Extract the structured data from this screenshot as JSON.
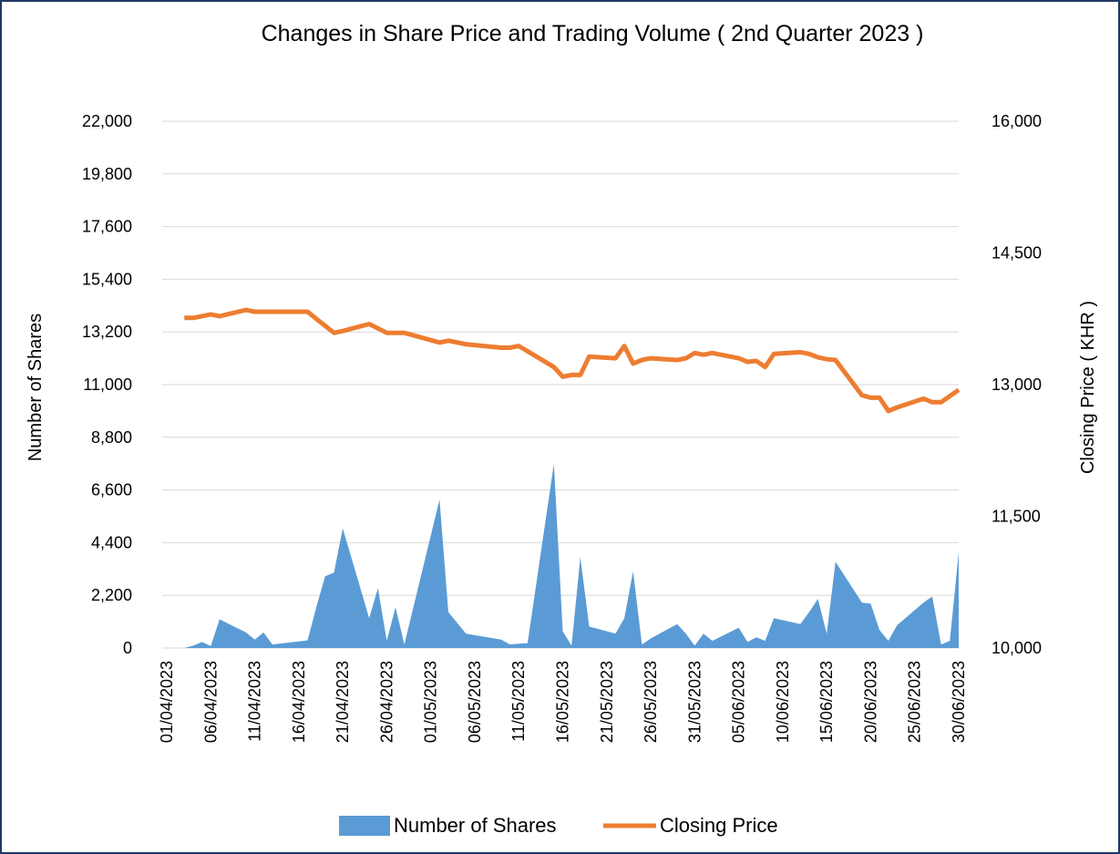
{
  "chart_data": {
    "type": "area-line",
    "title": "Changes in Share Price and Trading Volume ( 2nd Quarter 2023 )",
    "ylabel": "Number of Shares",
    "y2label": "Closing Price ( KHR )",
    "x": [
      "03/04/2023",
      "04/04/2023",
      "05/04/2023",
      "06/04/2023",
      "07/04/2023",
      "10/04/2023",
      "11/04/2023",
      "12/04/2023",
      "13/04/2023",
      "17/04/2023",
      "18/04/2023",
      "19/04/2023",
      "20/04/2023",
      "21/04/2023",
      "24/04/2023",
      "25/04/2023",
      "26/04/2023",
      "27/04/2023",
      "28/04/2023",
      "02/05/2023",
      "03/05/2023",
      "05/05/2023",
      "09/05/2023",
      "10/05/2023",
      "11/05/2023",
      "12/05/2023",
      "15/05/2023",
      "16/05/2023",
      "17/05/2023",
      "18/05/2023",
      "19/05/2023",
      "22/05/2023",
      "23/05/2023",
      "24/05/2023",
      "25/05/2023",
      "26/05/2023",
      "29/05/2023",
      "30/05/2023",
      "31/05/2023",
      "01/06/2023",
      "02/06/2023",
      "05/06/2023",
      "06/06/2023",
      "07/06/2023",
      "08/06/2023",
      "09/06/2023",
      "12/06/2023",
      "13/06/2023",
      "14/06/2023",
      "15/06/2023",
      "16/06/2023",
      "19/06/2023",
      "20/06/2023",
      "21/06/2023",
      "22/06/2023",
      "23/06/2023",
      "26/06/2023",
      "27/06/2023",
      "28/06/2023",
      "29/06/2023",
      "30/06/2023"
    ],
    "series": [
      {
        "name": "Number of Shares",
        "color": "#5b9bd5",
        "axis": "y",
        "values": [
          0,
          100,
          250,
          80,
          1200,
          650,
          350,
          650,
          150,
          320,
          1700,
          3000,
          3150,
          5000,
          1250,
          2500,
          300,
          1700,
          150,
          6200,
          1500,
          600,
          350,
          150,
          180,
          200,
          7700,
          700,
          100,
          3800,
          900,
          600,
          1250,
          3200,
          150,
          400,
          1000,
          600,
          100,
          600,
          300,
          850,
          250,
          450,
          300,
          1250,
          1000,
          1500,
          2050,
          600,
          3600,
          1900,
          1850,
          750,
          300,
          950,
          1900,
          2150,
          150,
          300,
          4000
        ]
      },
      {
        "name": "Closing Price",
        "color": "#ed7d31",
        "axis": "y2",
        "values": [
          13760,
          13760,
          13780,
          13800,
          13780,
          13850,
          13830,
          13830,
          13830,
          13830,
          13750,
          13670,
          13590,
          13610,
          13690,
          13640,
          13590,
          13590,
          13590,
          13480,
          13500,
          13460,
          13420,
          13420,
          13440,
          13380,
          13200,
          13090,
          13110,
          13110,
          13320,
          13300,
          13440,
          13240,
          13280,
          13300,
          13280,
          13300,
          13360,
          13340,
          13360,
          13300,
          13260,
          13270,
          13200,
          13350,
          13370,
          13350,
          13310,
          13290,
          13280,
          12880,
          12850,
          12850,
          12700,
          12740,
          12840,
          12800,
          12800,
          12870,
          12940
        ]
      }
    ],
    "xlim": [
      "01/04/2023",
      "30/06/2023"
    ],
    "xticks": [
      "01/04/2023",
      "06/04/2023",
      "11/04/2023",
      "16/04/2023",
      "21/04/2023",
      "26/04/2023",
      "01/05/2023",
      "06/05/2023",
      "11/05/2023",
      "16/05/2023",
      "21/05/2023",
      "26/05/2023",
      "31/05/2023",
      "05/06/2023",
      "10/06/2023",
      "15/06/2023",
      "20/06/2023",
      "25/06/2023",
      "30/06/2023"
    ],
    "ylim": [
      0,
      22000
    ],
    "yticks": [
      0,
      {
        "value": 2200,
        "label": "2,200"
      },
      {
        "value": 4400,
        "label": "4,400"
      },
      {
        "value": 6600,
        "label": "6,600"
      },
      {
        "value": 8800,
        "label": "8,800"
      },
      {
        "value": 11000,
        "label": "11,000"
      },
      {
        "value": 13200,
        "label": "13,200"
      },
      {
        "value": 15400,
        "label": "15,400"
      },
      {
        "value": 17600,
        "label": "17,600"
      },
      {
        "value": 19800,
        "label": "19,800"
      },
      {
        "value": 22000,
        "label": "22,000"
      }
    ],
    "y2lim": [
      10000,
      16000
    ],
    "y2ticks": [
      {
        "value": 10000,
        "label": "10,000"
      },
      {
        "value": 11500,
        "label": "11,500"
      },
      {
        "value": 13000,
        "label": "13,000"
      },
      {
        "value": 14500,
        "label": "14,500"
      },
      {
        "value": 16000,
        "label": "16,000"
      }
    ],
    "grid": true,
    "legend": "bottom"
  }
}
